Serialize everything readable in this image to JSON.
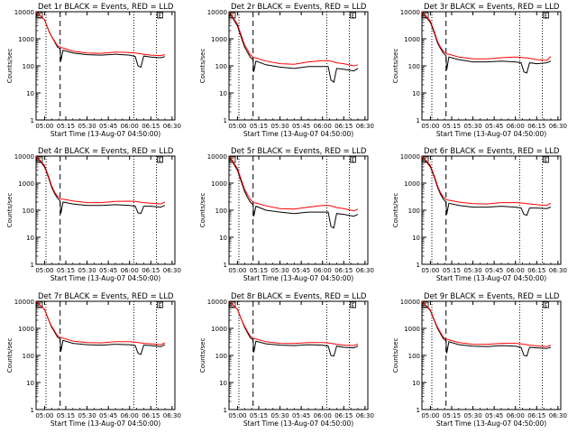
{
  "figure": {
    "colors": {
      "events": "#000000",
      "lld": "#ff0000",
      "axes": "#000000",
      "background": "#ffffff"
    },
    "xaxis": {
      "tick_labels": [
        "05:00",
        "05:15",
        "05:30",
        "05:45",
        "06:00",
        "06:15",
        "06:30"
      ],
      "xlim_minutes_from_0500": [
        -6,
        92
      ],
      "xlabel": "Start Time (13-Aug-07 04:50:00)"
    },
    "yaxis": {
      "scale": "log",
      "ylim": [
        1,
        10000
      ],
      "tick_labels": [
        "1",
        "10",
        "100",
        "1000",
        "10000"
      ],
      "ylabel": "Counts/sec"
    },
    "markers": {
      "dotted_minutes": [
        1,
        63,
        79
      ],
      "dashed_minutes": [
        11
      ]
    },
    "box_label": "E"
  },
  "chart_data": [
    {
      "type": "line",
      "title": "Det 1r BLACK = Events, RED = LLD",
      "x": [
        -6,
        0,
        3,
        5,
        7,
        9,
        11,
        11.5,
        13,
        20,
        30,
        40,
        50,
        60,
        64,
        66,
        68,
        70,
        75,
        82,
        85
      ],
      "series": [
        {
          "name": "BLACK = Events",
          "color": "#000000",
          "values": [
            10000,
            5000,
            2000,
            1200,
            800,
            500,
            430,
            150,
            380,
            300,
            260,
            250,
            270,
            250,
            220,
            100,
            90,
            230,
            210,
            200,
            220
          ]
        },
        {
          "name": "RED = LLD",
          "color": "#ff0000",
          "values": [
            10000,
            5000,
            2000,
            1200,
            850,
            560,
            500,
            470,
            460,
            350,
            300,
            290,
            320,
            310,
            300,
            290,
            280,
            270,
            250,
            240,
            260
          ]
        }
      ],
      "xlabel": "Start Time (13-Aug-07 04:50:00)",
      "ylabel": "Counts/sec",
      "ylim": [
        1,
        10000
      ],
      "yscale": "log"
    },
    {
      "type": "line",
      "title": "Det 2r BLACK = Events, RED = LLD",
      "x": [
        -6,
        0,
        3,
        5,
        7,
        9,
        11,
        11.5,
        13,
        20,
        30,
        40,
        50,
        60,
        64,
        66,
        68,
        70,
        75,
        82,
        85
      ],
      "series": [
        {
          "name": "BLACK = Events",
          "color": "#000000",
          "values": [
            10000,
            3000,
            1000,
            500,
            320,
            210,
            170,
            60,
            150,
            110,
            90,
            80,
            95,
            95,
            95,
            30,
            25,
            80,
            75,
            65,
            80
          ]
        },
        {
          "name": "RED = LLD",
          "color": "#ff0000",
          "values": [
            10000,
            3500,
            1200,
            600,
            400,
            260,
            210,
            200,
            195,
            150,
            120,
            115,
            140,
            155,
            155,
            150,
            140,
            130,
            120,
            100,
            110
          ]
        }
      ],
      "xlabel": "Start Time (13-Aug-07 04:50:00)",
      "ylabel": "Counts/sec",
      "ylim": [
        1,
        10000
      ],
      "yscale": "log"
    },
    {
      "type": "line",
      "title": "Det 3r BLACK = Events, RED = LLD",
      "x": [
        -6,
        0,
        3,
        5,
        7,
        9,
        11,
        11.5,
        13,
        20,
        30,
        40,
        50,
        60,
        64,
        66,
        68,
        70,
        75,
        82,
        85
      ],
      "series": [
        {
          "name": "BLACK = Events",
          "color": "#000000",
          "values": [
            10000,
            4000,
            1500,
            700,
            450,
            300,
            240,
            70,
            210,
            170,
            140,
            140,
            150,
            140,
            130,
            60,
            55,
            130,
            120,
            130,
            150
          ]
        },
        {
          "name": "RED = LLD",
          "color": "#ff0000",
          "values": [
            10000,
            4500,
            1700,
            800,
            500,
            350,
            290,
            280,
            270,
            210,
            180,
            180,
            200,
            210,
            205,
            200,
            195,
            190,
            170,
            160,
            220
          ]
        }
      ],
      "xlabel": "Start Time (13-Aug-07 04:50:00)",
      "ylabel": "Counts/sec",
      "ylim": [
        1,
        10000
      ],
      "yscale": "log"
    },
    {
      "type": "line",
      "title": "Det 4r BLACK = Events, RED = LLD",
      "x": [
        -6,
        0,
        3,
        5,
        7,
        9,
        11,
        11.5,
        13,
        20,
        30,
        40,
        50,
        60,
        64,
        66,
        68,
        70,
        75,
        82,
        85
      ],
      "series": [
        {
          "name": "BLACK = Events",
          "color": "#000000",
          "values": [
            10000,
            4000,
            1500,
            700,
            420,
            280,
            220,
            75,
            200,
            170,
            150,
            150,
            160,
            150,
            140,
            80,
            75,
            140,
            140,
            130,
            150
          ]
        },
        {
          "name": "RED = LLD",
          "color": "#ff0000",
          "values": [
            10000,
            4500,
            1700,
            800,
            480,
            330,
            270,
            260,
            255,
            220,
            190,
            190,
            210,
            215,
            210,
            205,
            195,
            190,
            180,
            170,
            200
          ]
        }
      ],
      "xlabel": "Start Time (13-Aug-07 04:50:00)",
      "ylabel": "Counts/sec",
      "ylim": [
        1,
        10000
      ],
      "yscale": "log"
    },
    {
      "type": "line",
      "title": "Det 5r BLACK = Events, RED = LLD",
      "x": [
        -6,
        0,
        3,
        5,
        7,
        9,
        11,
        11.5,
        13,
        20,
        30,
        40,
        50,
        60,
        64,
        66,
        68,
        70,
        75,
        82,
        85
      ],
      "series": [
        {
          "name": "BLACK = Events",
          "color": "#000000",
          "values": [
            10000,
            3000,
            1000,
            500,
            300,
            200,
            160,
            60,
            140,
            100,
            85,
            75,
            85,
            85,
            85,
            25,
            22,
            75,
            70,
            60,
            70
          ]
        },
        {
          "name": "RED = LLD",
          "color": "#ff0000",
          "values": [
            10000,
            3500,
            1200,
            600,
            380,
            250,
            200,
            190,
            185,
            145,
            115,
            110,
            130,
            150,
            150,
            145,
            135,
            125,
            115,
            95,
            110
          ]
        }
      ],
      "xlabel": "Start Time (13-Aug-07 04:50:00)",
      "ylabel": "Counts/sec",
      "ylim": [
        1,
        10000
      ],
      "yscale": "log"
    },
    {
      "type": "line",
      "title": "Det 6r BLACK = Events, RED = LLD",
      "x": [
        -6,
        0,
        3,
        5,
        7,
        9,
        11,
        11.5,
        13,
        20,
        30,
        40,
        50,
        60,
        64,
        66,
        68,
        70,
        75,
        82,
        85
      ],
      "series": [
        {
          "name": "BLACK = Events",
          "color": "#000000",
          "values": [
            10000,
            4000,
            1500,
            700,
            400,
            260,
            200,
            70,
            180,
            150,
            130,
            130,
            140,
            130,
            120,
            70,
            65,
            120,
            120,
            115,
            130
          ]
        },
        {
          "name": "RED = LLD",
          "color": "#ff0000",
          "values": [
            10000,
            4500,
            1700,
            800,
            460,
            310,
            250,
            240,
            235,
            200,
            175,
            170,
            190,
            190,
            185,
            180,
            175,
            170,
            160,
            150,
            180
          ]
        }
      ],
      "xlabel": "Start Time (13-Aug-07 04:50:00)",
      "ylabel": "Counts/sec",
      "ylim": [
        1,
        10000
      ],
      "yscale": "log"
    },
    {
      "type": "line",
      "title": "Det 7r BLACK = Events, RED = LLD",
      "x": [
        -6,
        0,
        3,
        5,
        7,
        9,
        11,
        11.5,
        13,
        20,
        30,
        40,
        50,
        60,
        64,
        66,
        68,
        70,
        75,
        82,
        85
      ],
      "series": [
        {
          "name": "BLACK = Events",
          "color": "#000000",
          "values": [
            10000,
            5000,
            2000,
            1100,
            750,
            480,
            400,
            140,
            360,
            280,
            250,
            240,
            260,
            250,
            230,
            120,
            110,
            240,
            230,
            210,
            250
          ]
        },
        {
          "name": "RED = LLD",
          "color": "#ff0000",
          "values": [
            10000,
            5000,
            2000,
            1200,
            820,
            540,
            470,
            450,
            440,
            340,
            300,
            290,
            320,
            320,
            310,
            300,
            290,
            280,
            270,
            250,
            290
          ]
        }
      ],
      "xlabel": "Start Time (13-Aug-07 04:50:00)",
      "ylabel": "Counts/sec",
      "ylim": [
        1,
        10000
      ],
      "yscale": "log"
    },
    {
      "type": "line",
      "title": "Det 8r BLACK = Events, RED = LLD",
      "x": [
        -6,
        0,
        3,
        5,
        7,
        9,
        11,
        11.5,
        13,
        20,
        30,
        40,
        50,
        60,
        64,
        66,
        68,
        70,
        75,
        82,
        85
      ],
      "series": [
        {
          "name": "BLACK = Events",
          "color": "#000000",
          "values": [
            10000,
            5000,
            2000,
            1100,
            700,
            450,
            380,
            130,
            340,
            270,
            240,
            230,
            250,
            240,
            220,
            100,
            95,
            220,
            200,
            190,
            220
          ]
        },
        {
          "name": "RED = LLD",
          "color": "#ff0000",
          "values": [
            10000,
            5000,
            2000,
            1200,
            780,
            520,
            440,
            420,
            410,
            320,
            280,
            275,
            300,
            300,
            290,
            280,
            270,
            260,
            240,
            230,
            260
          ]
        }
      ],
      "xlabel": "Start Time (13-Aug-07 04:50:00)",
      "ylabel": "Counts/sec",
      "ylim": [
        1,
        10000
      ],
      "yscale": "log"
    },
    {
      "type": "line",
      "title": "Det 9r BLACK = Events, RED = LLD",
      "x": [
        -6,
        0,
        3,
        5,
        7,
        9,
        11,
        11.5,
        13,
        20,
        30,
        40,
        50,
        60,
        64,
        66,
        68,
        70,
        75,
        82,
        85
      ],
      "series": [
        {
          "name": "BLACK = Events",
          "color": "#000000",
          "values": [
            10000,
            4500,
            1800,
            1000,
            650,
            420,
            350,
            120,
            320,
            250,
            220,
            210,
            230,
            220,
            200,
            100,
            95,
            200,
            190,
            180,
            200
          ]
        },
        {
          "name": "RED = LLD",
          "color": "#ff0000",
          "values": [
            10000,
            4800,
            1900,
            1100,
            720,
            480,
            400,
            390,
            380,
            300,
            260,
            255,
            280,
            280,
            270,
            260,
            250,
            240,
            225,
            210,
            240
          ]
        }
      ],
      "xlabel": "Start Time (13-Aug-07 04:50:00)",
      "ylabel": "Counts/sec",
      "ylim": [
        1,
        10000
      ],
      "yscale": "log"
    }
  ]
}
